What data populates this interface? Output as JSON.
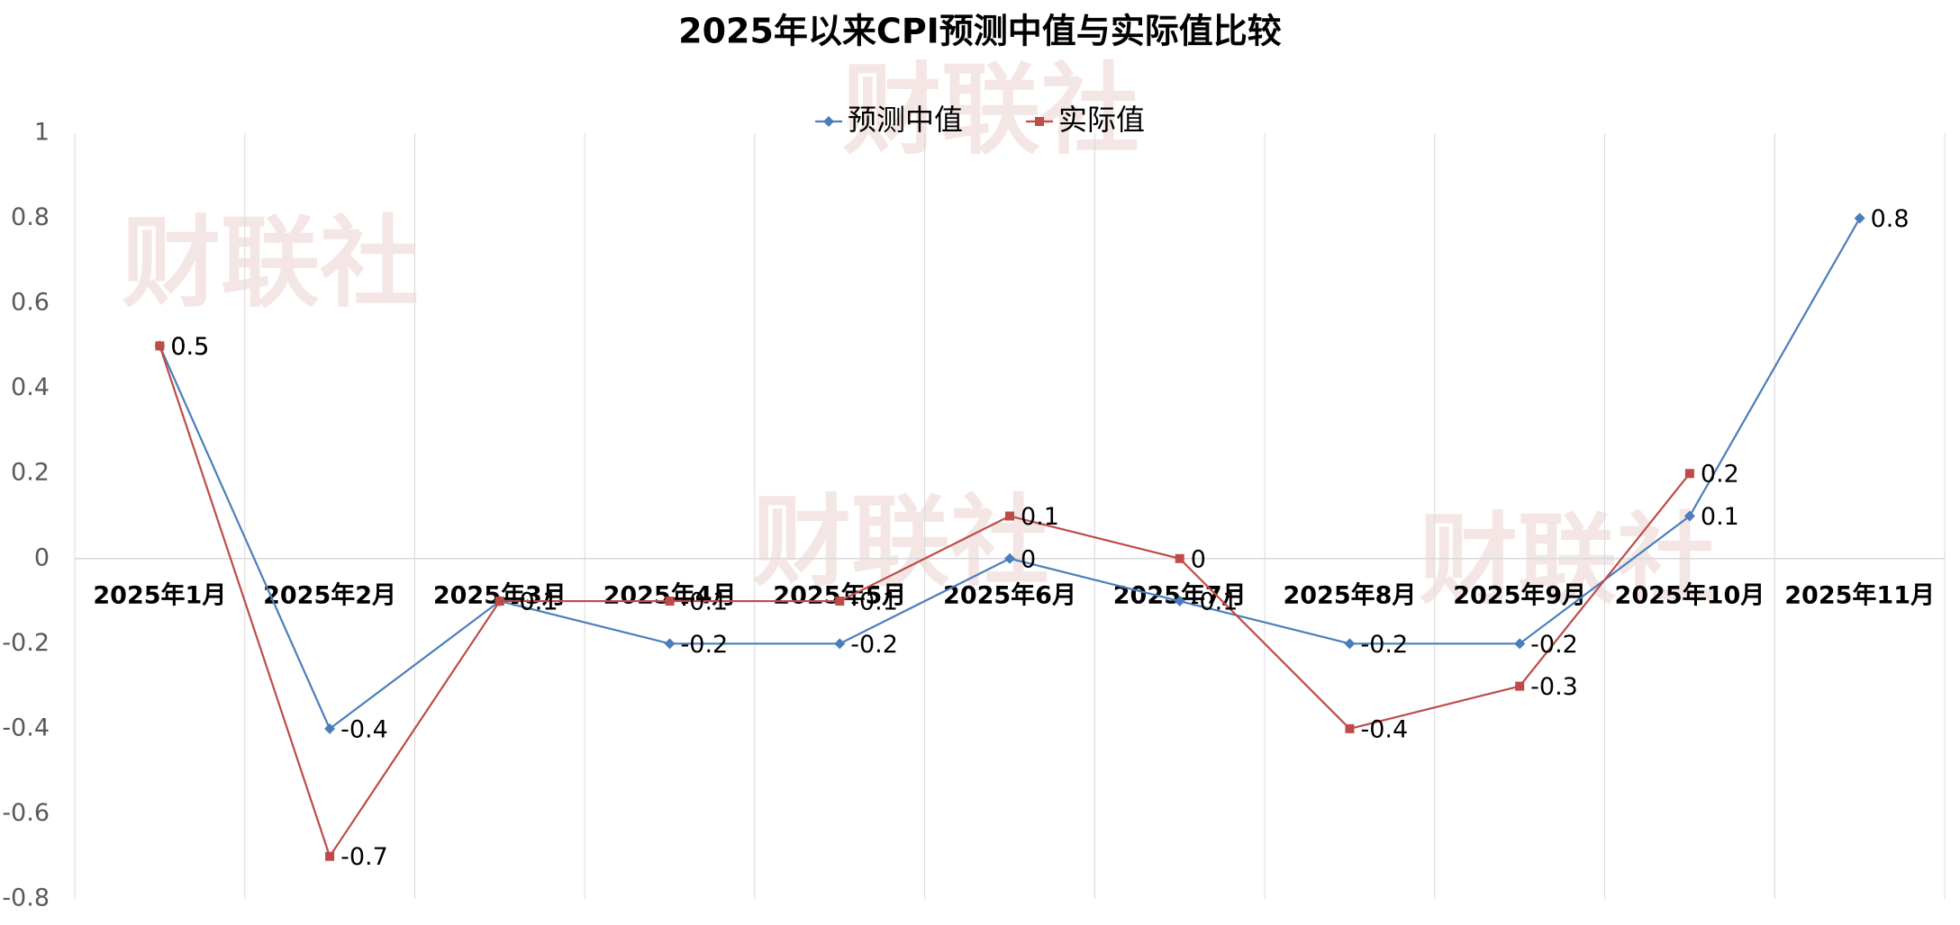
{
  "chart_data": {
    "type": "line",
    "title": "2025年以来CPI预测中值与实际值比较",
    "watermark": "财联社",
    "categories": [
      "2025年1月",
      "2025年2月",
      "2025年3月",
      "2025年4月",
      "2025年5月",
      "2025年6月",
      "2025年7月",
      "2025年8月",
      "2025年9月",
      "2025年10月",
      "2025年11月"
    ],
    "series": [
      {
        "name": "预测中值",
        "color": "#4a7ebb",
        "marker": "diamond",
        "values": [
          0.5,
          -0.4,
          -0.1,
          -0.2,
          -0.2,
          0,
          -0.1,
          -0.2,
          -0.2,
          0.1,
          0.8
        ]
      },
      {
        "name": "实际值",
        "color": "#be4b48",
        "marker": "square",
        "values": [
          0.5,
          -0.7,
          -0.1,
          -0.1,
          -0.1,
          0.1,
          0,
          -0.4,
          -0.3,
          0.2,
          null
        ]
      }
    ],
    "ylim": [
      -0.8,
      1
    ],
    "yticks": [
      1,
      0.8,
      0.6,
      0.4,
      0.2,
      0,
      -0.2,
      -0.4,
      -0.6,
      -0.8
    ],
    "legend": "top"
  }
}
